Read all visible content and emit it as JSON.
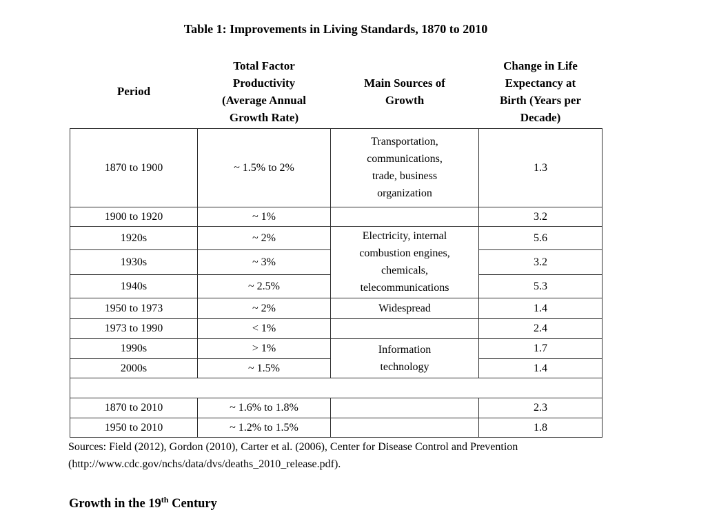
{
  "title": "Table 1: Improvements in Living Standards, 1870 to 2010",
  "table": {
    "headers": {
      "period": "Period",
      "tfp": "Total Factor\nProductivity\n(Average Annual\nGrowth Rate)",
      "sources": "Main Sources of\nGrowth",
      "life": "Change in Life\nExpectancy at\nBirth (Years per\nDecade)"
    },
    "rows": [
      {
        "period": "1870 to 1900",
        "tfp": "~ 1.5% to 2%",
        "sources": "Transportation,\ncommunications,\ntrade, business\norganization",
        "life": "1.3"
      },
      {
        "period": "1900 to 1920",
        "tfp": "~ 1%",
        "sources": "",
        "life": "3.2"
      },
      {
        "period": "1920s",
        "tfp": "~ 2%",
        "sources": "Electricity, internal\ncombustion engines,\nchemicals,\ntelecommunications",
        "life": "5.6"
      },
      {
        "period": "1930s",
        "tfp": "~ 3%",
        "life": "3.2"
      },
      {
        "period": "1940s",
        "tfp": "~ 2.5%",
        "life": "5.3"
      },
      {
        "period": "1950 to 1973",
        "tfp": "~ 2%",
        "sources": "Widespread",
        "life": "1.4"
      },
      {
        "period": "1973 to 1990",
        "tfp": "< 1%",
        "sources": "",
        "life": "2.4"
      },
      {
        "period": "1990s",
        "tfp": "> 1%",
        "sources": "Information\ntechnology",
        "life": "1.7"
      },
      {
        "period": "2000s",
        "tfp": "~ 1.5%",
        "life": "1.4"
      },
      {
        "spacer": ""
      },
      {
        "period": "1870 to 2010",
        "tfp": "~ 1.6% to 1.8%",
        "sources": "",
        "life": "2.3"
      },
      {
        "period": "1950 to 2010",
        "tfp": "~ 1.2% to 1.5%",
        "sources": "",
        "life": "1.8"
      }
    ]
  },
  "sources_note": "Sources: Field (2012), Gordon (2010), Carter et al. (2006), Center for Disease Control and Prevention\n(http://www.cdc.gov/nchs/data/dvs/deaths_2010_release.pdf).",
  "footer_heading": {
    "pre": "Growth in the 19",
    "sup": "th",
    "post": " Century"
  },
  "colors": {
    "text": "#000000",
    "border": "#2e2e2e",
    "background": "#ffffff"
  }
}
